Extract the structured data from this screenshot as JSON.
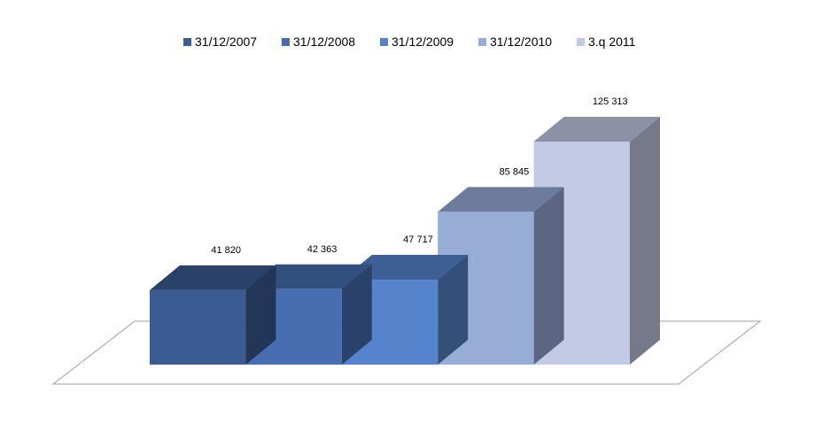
{
  "chart_data": {
    "type": "bar",
    "categories": [
      "31/12/2007",
      "31/12/2008",
      "31/12/2009",
      "31/12/2010",
      "3.q 2011"
    ],
    "values": [
      41820,
      42363,
      47717,
      85845,
      125313
    ],
    "value_labels": [
      "41 820",
      "42 363",
      "47 717",
      "85 845",
      "125 313"
    ],
    "title": "",
    "xlabel": "",
    "ylabel": "",
    "ylim": [
      0,
      125313
    ],
    "grid": false,
    "legend_placement": "top",
    "style": "3d-column",
    "colors": [
      "#3a5a92",
      "#466eb0",
      "#5584cc",
      "#98acd8",
      "#c3cae6"
    ]
  }
}
